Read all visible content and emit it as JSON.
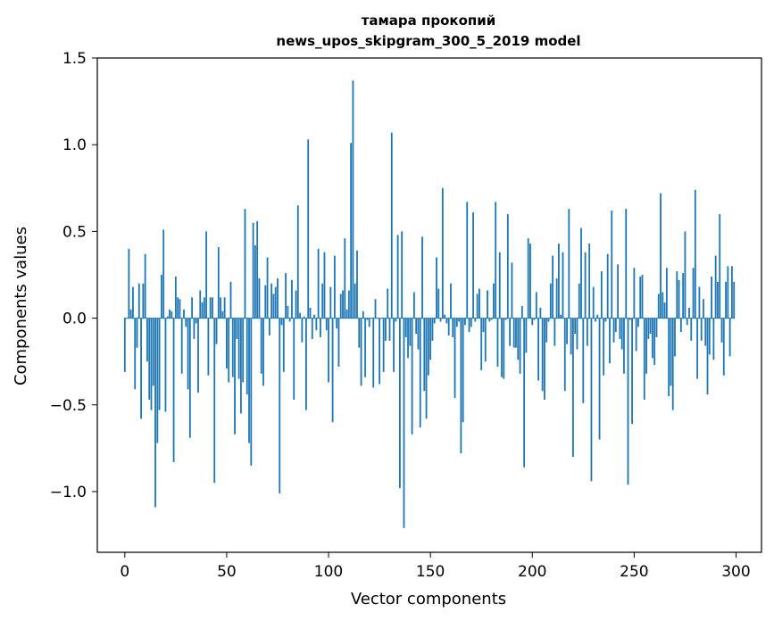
{
  "chart_data": {
    "type": "bar",
    "title": [
      "тамара прокопий",
      "news_upos_skipgram_300_5_2019 model"
    ],
    "xlabel": "Vector components",
    "ylabel": "Components values",
    "xlim": [
      -13.5,
      312.5
    ],
    "ylim": [
      -1.35,
      1.5
    ],
    "xticks": [
      0,
      50,
      100,
      150,
      200,
      250,
      300
    ],
    "xtick_labels": [
      "0",
      "50",
      "100",
      "150",
      "200",
      "250",
      "300"
    ],
    "yticks": [
      -1.0,
      -0.5,
      0.0,
      0.5,
      1.0,
      1.5
    ],
    "ytick_labels": [
      "−1.0",
      "−0.5",
      "0.0",
      "0.5",
      "1.0",
      "1.5"
    ],
    "grid": false,
    "bar_color": "#1f77b4",
    "values": [
      -0.31,
      0.0,
      0.4,
      0.05,
      0.18,
      -0.41,
      -0.17,
      0.2,
      -0.58,
      0.2,
      0.37,
      -0.25,
      -0.47,
      -0.53,
      -0.39,
      -1.09,
      -0.72,
      -0.53,
      0.25,
      0.51,
      -0.54,
      0.01,
      0.05,
      0.04,
      -0.83,
      0.24,
      0.12,
      0.11,
      -0.32,
      0.05,
      -0.05,
      -0.41,
      -0.69,
      0.12,
      -0.12,
      -0.03,
      -0.43,
      0.16,
      0.09,
      0.12,
      0.5,
      -0.33,
      0.12,
      0.12,
      -0.95,
      -0.15,
      0.41,
      0.12,
      0.04,
      0.12,
      -0.29,
      -0.37,
      0.21,
      -0.34,
      -0.67,
      -0.12,
      -0.35,
      -0.55,
      -0.37,
      0.63,
      -0.44,
      -0.72,
      -0.85,
      0.55,
      0.42,
      0.56,
      0.23,
      -0.32,
      -0.39,
      0.19,
      0.35,
      -0.1,
      0.2,
      0.14,
      0.18,
      0.23,
      -1.01,
      -0.04,
      -0.31,
      0.26,
      0.07,
      -0.02,
      0.22,
      -0.47,
      0.16,
      0.65,
      0.03,
      -0.14,
      0.01,
      -0.53,
      1.03,
      0.06,
      -0.12,
      0.02,
      -0.07,
      0.4,
      -0.11,
      0.2,
      0.38,
      -0.07,
      -0.37,
      0.18,
      -0.6,
      0.36,
      -0.06,
      -0.28,
      0.14,
      0.16,
      0.46,
      0.05,
      0.16,
      1.01,
      1.37,
      0.2,
      0.39,
      -0.17,
      -0.39,
      0.04,
      -0.34,
      -0.01,
      -0.05,
      0.0,
      -0.4,
      0.11,
      0.0,
      -0.38,
      0.0,
      -0.31,
      -0.13,
      0.17,
      -0.13,
      1.07,
      -0.31,
      -0.02,
      0.48,
      -0.98,
      0.5,
      -1.21,
      -0.11,
      -0.23,
      -0.16,
      -0.67,
      0.15,
      -0.09,
      -0.18,
      -0.63,
      0.47,
      -0.42,
      -0.58,
      -0.33,
      -0.24,
      -0.13,
      -0.03,
      0.35,
      0.17,
      -0.02,
      0.75,
      0.02,
      -0.03,
      -0.1,
      0.2,
      -0.11,
      -0.46,
      -0.05,
      -0.02,
      -0.78,
      -0.6,
      -0.04,
      0.67,
      -0.08,
      -0.05,
      0.61,
      -0.02,
      0.14,
      0.17,
      -0.3,
      -0.08,
      -0.25,
      0.16,
      -0.02,
      -0.01,
      0.2,
      0.67,
      -0.28,
      0.38,
      -0.34,
      -0.35,
      -0.01,
      0.6,
      -0.16,
      0.32,
      -0.17,
      -0.17,
      -0.24,
      -0.32,
      0.07,
      -0.86,
      -0.2,
      0.46,
      0.43,
      -0.04,
      -0.01,
      0.15,
      -0.36,
      0.06,
      -0.42,
      -0.47,
      -0.14,
      -0.02,
      0.2,
      0.36,
      -0.16,
      0.23,
      0.43,
      0.02,
      0.38,
      -0.42,
      -0.15,
      0.63,
      -0.21,
      -0.8,
      -0.09,
      -0.18,
      0.2,
      0.52,
      -0.49,
      0.38,
      -0.16,
      0.43,
      -0.94,
      0.18,
      -0.02,
      0.02,
      -0.7,
      0.27,
      -0.33,
      -0.02,
      0.37,
      -0.26,
      0.62,
      -0.14,
      -0.08,
      0.31,
      -0.12,
      -0.18,
      -0.32,
      0.63,
      -0.96,
      -0.01,
      -0.61,
      0.29,
      -0.19,
      -0.05,
      0.24,
      0.25,
      -0.47,
      -0.32,
      -0.12,
      -0.09,
      -0.23,
      -0.27,
      -0.11,
      0.14,
      0.72,
      0.15,
      0.09,
      0.29,
      -0.45,
      -0.39,
      -0.53,
      -0.22,
      0.27,
      0.22,
      -0.08,
      0.26,
      0.5,
      -0.04,
      0.06,
      -0.13,
      0.29,
      0.74,
      -0.35,
      0.18,
      -0.13,
      0.11,
      -0.16,
      -0.44,
      -0.21,
      0.24,
      -0.24,
      0.36,
      0.21,
      0.6,
      -0.14,
      -0.33,
      0.21,
      0.3,
      -0.22,
      0.3,
      0.21
    ]
  }
}
